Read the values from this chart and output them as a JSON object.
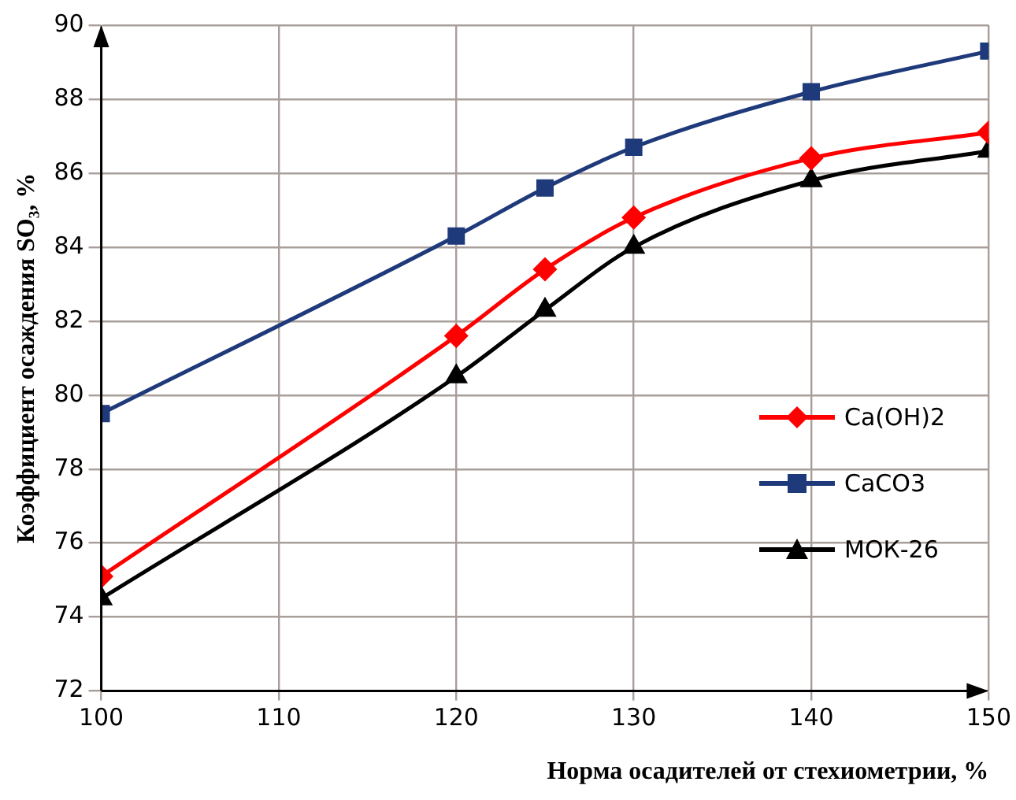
{
  "chart_data": {
    "type": "line",
    "xlabel": "Норма осадителей от стехиометрии, %",
    "ylabel": "Коэффициент осаждения SO₃, %",
    "x": [
      100,
      120,
      125,
      130,
      140,
      150
    ],
    "xlim": [
      100,
      150
    ],
    "xticks": [
      100,
      110,
      120,
      130,
      140,
      150
    ],
    "ylim": [
      72,
      90
    ],
    "yticks": [
      72,
      74,
      76,
      78,
      80,
      82,
      84,
      86,
      88,
      90
    ],
    "grid": true,
    "legend": "right",
    "line_style": "solid",
    "series": [
      {
        "name": "Ca(OH)2",
        "color": "#ff0000",
        "marker": "diamond",
        "values": [
          75.1,
          81.6,
          83.4,
          84.8,
          86.4,
          87.1
        ]
      },
      {
        "name": "CaCO3",
        "color": "#1f3a7a",
        "marker": "square",
        "values": [
          79.5,
          84.3,
          85.6,
          86.7,
          88.2,
          89.3
        ]
      },
      {
        "name": "МОК-26",
        "color": "#000000",
        "marker": "triangle",
        "values": [
          74.5,
          80.5,
          82.3,
          84.0,
          85.8,
          86.6
        ]
      }
    ]
  }
}
